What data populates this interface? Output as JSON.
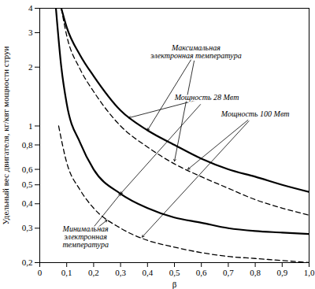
{
  "chart_data": {
    "type": "line",
    "x_label": "β",
    "y_label": "Удельный вес двигателя, кг/квт мощности струи",
    "log": "y",
    "grid": false,
    "xlim": [
      0,
      1
    ],
    "ylim": [
      0.2,
      4
    ],
    "xticks": [
      0,
      {
        "value": 0.1,
        "label": "0,1"
      },
      {
        "value": 0.2,
        "label": "0,2"
      },
      {
        "value": 0.3,
        "label": "0,3"
      },
      {
        "value": 0.4,
        "label": "0,4"
      },
      {
        "value": 0.5,
        "label": "0,5"
      },
      {
        "value": 0.6,
        "label": "0,6"
      },
      {
        "value": 0.7,
        "label": "0,7"
      },
      {
        "value": 0.8,
        "label": "0,8"
      },
      {
        "value": 0.9,
        "label": "0,9"
      },
      {
        "value": 1,
        "label": "1,0"
      }
    ],
    "yticks": [
      {
        "value": 0.2,
        "label": "0,2"
      },
      {
        "value": 0.3,
        "label": "0,3"
      },
      {
        "value": 0.4,
        "label": "0,4"
      },
      {
        "value": 0.5,
        "label": "0,5"
      },
      {
        "value": 0.6,
        "label": "0,6"
      },
      {
        "value": 0.8,
        "label": "0,8"
      },
      1,
      2,
      3,
      4
    ],
    "series": [
      {
        "color": "#000000",
        "line_style": "solid",
        "x": [
          0.08,
          0.1,
          0.15,
          0.2,
          0.3,
          0.4,
          0.5,
          0.6,
          0.7,
          0.8,
          0.9,
          1.0
        ],
        "values": [
          4,
          3.2,
          2.3,
          1.8,
          1.2,
          0.95,
          0.8,
          0.68,
          0.6,
          0.55,
          0.5,
          0.46
        ]
      },
      {
        "color": "#000000",
        "line_style": "dashed",
        "x": [
          0.08,
          0.1,
          0.15,
          0.2,
          0.3,
          0.4,
          0.5,
          0.6,
          0.7,
          0.8,
          0.9,
          1.0
        ],
        "values": [
          4,
          2.9,
          1.95,
          1.5,
          1.0,
          0.78,
          0.64,
          0.55,
          0.48,
          0.42,
          0.38,
          0.35
        ]
      },
      {
        "color": "#000000",
        "line_style": "solid",
        "x": [
          0.06,
          0.08,
          0.1,
          0.15,
          0.2,
          0.3,
          0.4,
          0.5,
          0.6,
          0.7,
          0.8,
          0.9,
          1.0
        ],
        "values": [
          4,
          2.0,
          1.3,
          0.82,
          0.6,
          0.45,
          0.38,
          0.34,
          0.32,
          0.3,
          0.29,
          0.285,
          0.28
        ]
      },
      {
        "color": "#000000",
        "line_style": "dashed",
        "x": [
          0.07,
          0.1,
          0.15,
          0.2,
          0.3,
          0.4,
          0.5,
          0.6,
          0.7,
          0.8,
          0.9,
          1.0
        ],
        "values": [
          1.0,
          0.65,
          0.47,
          0.38,
          0.3,
          0.26,
          0.24,
          0.225,
          0.215,
          0.21,
          0.205,
          0.2
        ]
      }
    ],
    "annotations": [
      {
        "text": "Максимальная\nэлектронная температура",
        "x": 0.58,
        "y": 2.4,
        "arrows": [
          [
            0.4,
            0.95
          ],
          [
            0.5,
            0.66
          ]
        ]
      },
      {
        "text": "Мощность 28 Мвт",
        "x": 0.62,
        "y": 1.4,
        "arrows": [
          [
            0.33,
            1.1
          ],
          [
            0.3,
            0.45
          ]
        ]
      },
      {
        "text": "Мощность 100 Мвт",
        "x": 0.8,
        "y": 1.15,
        "arrows": [
          [
            0.55,
            0.6
          ],
          [
            0.38,
            0.27
          ]
        ]
      },
      {
        "text": "Минимальная\nэлектронная\nтемпература",
        "x": 0.17,
        "y": 0.27,
        "arrows": [
          [
            0.3,
            0.45
          ],
          [
            0.25,
            0.33
          ]
        ]
      }
    ]
  }
}
